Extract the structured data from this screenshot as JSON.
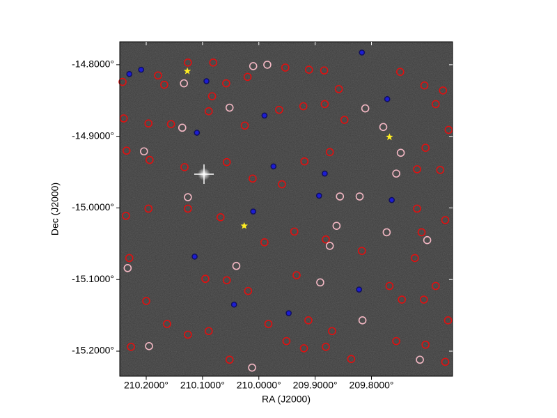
{
  "chart_data": {
    "type": "scatter",
    "xlabel": "RA (J2000)",
    "ylabel": "Dec (J2000)",
    "xlim": [
      210.247,
      209.656
    ],
    "ylim": [
      -15.235,
      -14.768
    ],
    "xticks": [
      {
        "value": 210.2,
        "label": "210.2000°"
      },
      {
        "value": 210.1,
        "label": "210.1000°"
      },
      {
        "value": 210.0,
        "label": "210.0000°"
      },
      {
        "value": 209.9,
        "label": "209.9000°"
      },
      {
        "value": 209.8,
        "label": "209.8000°"
      }
    ],
    "yticks": [
      {
        "value": -14.8,
        "label": "-14.8000°"
      },
      {
        "value": -14.9,
        "label": "-14.9000°"
      },
      {
        "value": -15.0,
        "label": "-15.0000°"
      },
      {
        "value": -15.1,
        "label": "-15.1000°"
      },
      {
        "value": -15.2,
        "label": "-15.2000°"
      }
    ],
    "background": "#3a3a3a",
    "series": [
      {
        "marker": "ring",
        "color": "#e01010",
        "x": [
          210.242,
          210.179,
          210.168,
          210.126,
          210.081,
          210.058,
          210.02,
          210.083,
          209.953,
          209.911,
          209.884,
          209.858,
          209.749,
          209.706,
          209.673,
          209.686,
          210.24,
          210.196,
          210.156,
          210.089,
          210.025,
          209.964,
          209.921,
          209.883,
          209.848,
          209.663,
          209.704,
          209.719,
          209.678,
          210.235,
          210.194,
          210.132,
          210.057,
          210.011,
          209.959,
          209.919,
          209.874,
          209.719,
          209.711,
          209.669,
          210.236,
          210.196,
          210.126,
          210.068,
          209.99,
          209.937,
          209.881,
          209.817,
          209.723,
          209.686,
          210.23,
          210.2,
          210.163,
          210.095,
          210.057,
          210.019,
          209.983,
          209.933,
          209.912,
          209.87,
          209.768,
          209.746,
          209.707,
          209.664,
          210.227,
          210.126,
          210.089,
          210.052,
          209.951,
          209.92,
          209.881,
          209.836,
          209.756,
          209.704,
          209.669
        ],
        "values": [
          -14.824,
          -14.815,
          -14.828,
          -14.797,
          -14.797,
          -14.826,
          -14.817,
          -14.844,
          -14.804,
          -14.807,
          -14.808,
          -14.834,
          -14.81,
          -14.829,
          -14.836,
          -14.855,
          -14.875,
          -14.882,
          -14.883,
          -14.865,
          -14.885,
          -14.863,
          -14.858,
          -14.855,
          -14.877,
          -14.891,
          -14.916,
          -14.946,
          -14.947,
          -14.92,
          -14.933,
          -14.943,
          -14.936,
          -14.959,
          -14.967,
          -14.935,
          -14.922,
          -15.001,
          -15.034,
          -15.017,
          -15.011,
          -15.001,
          -15.001,
          -15.013,
          -15.048,
          -15.033,
          -15.044,
          -15.06,
          -15.07,
          -15.109,
          -15.07,
          -15.13,
          -15.162,
          -15.099,
          -15.101,
          -15.116,
          -15.162,
          -15.094,
          -15.157,
          -15.172,
          -15.109,
          -15.128,
          -15.128,
          -15.157,
          -15.194,
          -15.177,
          -15.172,
          -15.212,
          -15.186,
          -15.196,
          -15.194,
          -15.211,
          -15.186,
          -15.191,
          -15.215
        ]
      },
      {
        "marker": "ring",
        "color": "#f4b8c4",
        "x": [
          210.133,
          210.052,
          210.01,
          209.985,
          209.811,
          209.779,
          209.748,
          209.756,
          210.136,
          210.204,
          210.126,
          209.856,
          209.821,
          209.862,
          209.773,
          209.874,
          210.233,
          210.04,
          209.891,
          209.816,
          210.195,
          210.012,
          209.714,
          209.701
        ],
        "values": [
          -14.826,
          -14.86,
          -14.802,
          -14.8,
          -14.861,
          -14.887,
          -14.923,
          -14.952,
          -14.888,
          -14.921,
          -14.985,
          -14.984,
          -14.984,
          -15.025,
          -15.034,
          -15.053,
          -15.084,
          -15.081,
          -15.104,
          -15.157,
          -15.193,
          -15.223,
          -15.212,
          -15.045
        ]
      },
      {
        "marker": "dot",
        "color": "#1c1cd4",
        "x": [
          210.23,
          210.209,
          210.093,
          210.11,
          209.99,
          209.974,
          209.883,
          209.893,
          210.01,
          210.114,
          210.044,
          209.947,
          209.822,
          209.772,
          209.817,
          209.764
        ],
        "values": [
          -14.813,
          -14.807,
          -14.823,
          -14.895,
          -14.871,
          -14.942,
          -14.952,
          -14.983,
          -15.005,
          -15.068,
          -15.135,
          -15.147,
          -15.114,
          -14.848,
          -14.783,
          -14.989
        ]
      },
      {
        "marker": "star",
        "color": "#ffee22",
        "x": [
          210.127,
          209.768,
          210.026
        ],
        "values": [
          -14.809,
          -14.901,
          -15.025
        ]
      }
    ]
  }
}
